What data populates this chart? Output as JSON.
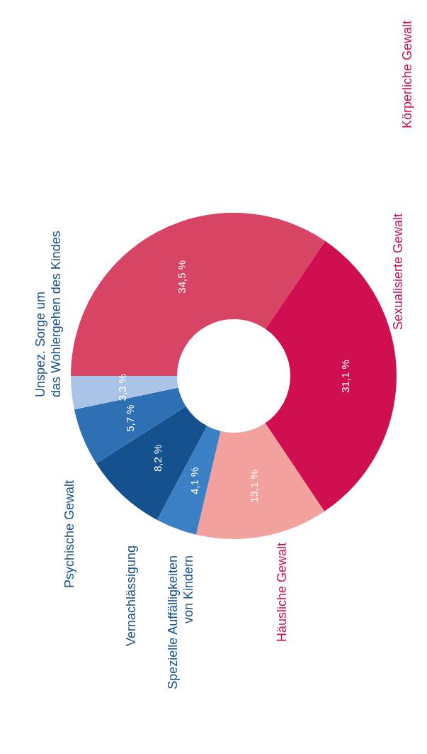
{
  "chart_data": {
    "type": "donut",
    "categories": [
      "Körperliche Gewalt",
      "Sexualisierte Gewalt",
      "Häusliche Gewalt",
      "Spezielle Auffälligkeiten von Kindern",
      "Vernachlässigung",
      "Psychische Gewalt",
      "Unspez. Sorge um das Wohlergehen des Kindes"
    ],
    "values": [
      34.5,
      31.1,
      13.1,
      4.1,
      8.2,
      5.7,
      3.3
    ],
    "colors": [
      "#d84463",
      "#cf0f4f",
      "#f3a19f",
      "#3b7fc4",
      "#15508f",
      "#2f6fb3",
      "#a9c4e6"
    ],
    "value_labels": [
      "34,5 %",
      "31,1 %",
      "13,1 %",
      "4,1 %",
      "8,2 %",
      "5,7 %",
      "3,3 %"
    ]
  }
}
